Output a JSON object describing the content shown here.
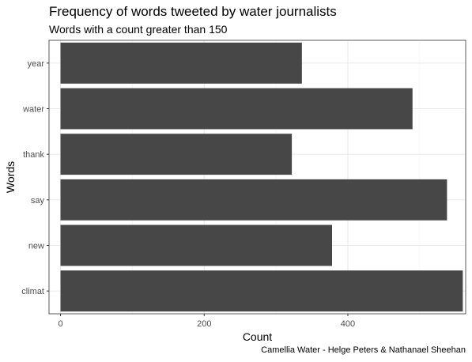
{
  "chart_data": {
    "type": "bar",
    "orientation": "horizontal",
    "title": "Frequency of words tweeted by water journalists",
    "subtitle": "Words with a count greater than 150",
    "xlabel": "Count",
    "ylabel": "Words",
    "caption": "Camellia Water - Helge Peters & Nathanael Sheehan",
    "categories": [
      "climat",
      "new",
      "say",
      "thank",
      "water",
      "year"
    ],
    "values": [
      560,
      378,
      538,
      322,
      490,
      336
    ],
    "xlim": [
      -16,
      564
    ],
    "xticks": [
      0,
      200,
      400
    ],
    "grid": true,
    "bar_color": "#474747",
    "legend": "none"
  }
}
